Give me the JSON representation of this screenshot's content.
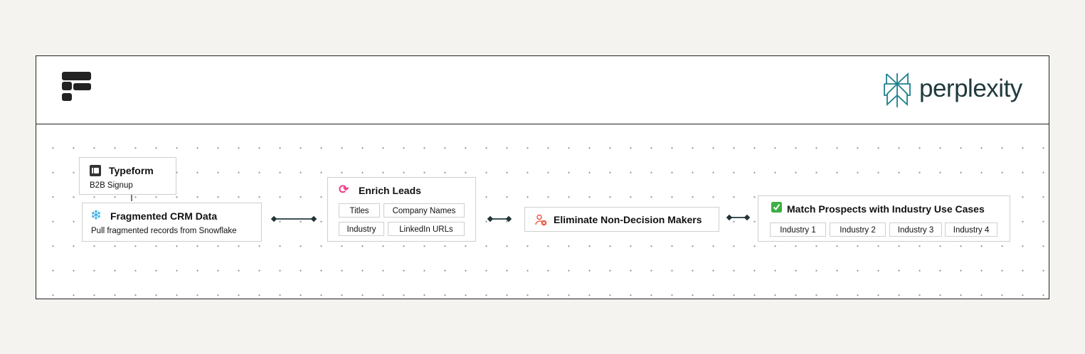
{
  "header": {
    "left_logo": "typeform-logo",
    "right_logo_text": "perplexity",
    "brand_color": "#1f3a3d",
    "accent_color": "#20808d"
  },
  "nodes": {
    "typeform": {
      "title": "Typeform",
      "subtitle": "B2B Signup",
      "icon": "typeform-icon"
    },
    "crm": {
      "title": "Fragmented CRM Data",
      "subtitle": "Pull fragmented records from Snowflake",
      "icon": "snowflake-icon",
      "icon_color": "#29a8e0"
    },
    "enrich": {
      "title": "Enrich Leads",
      "icon": "refresh-icon",
      "icon_color": "#ee3d8a",
      "chips": [
        "Titles",
        "Company Names",
        "Industry",
        "LinkedIn URLs"
      ]
    },
    "eliminate": {
      "title": "Eliminate Non-Decision Makers",
      "icon": "remove-user-icon",
      "icon_color": "#f0523a"
    },
    "match": {
      "title": "Match Prospects with Industry Use Cases",
      "icon": "check-box-icon",
      "icon_color": "#3cb043",
      "chips": [
        "Industry 1",
        "Industry 2",
        "Industry 3",
        "Industry 4"
      ]
    }
  }
}
